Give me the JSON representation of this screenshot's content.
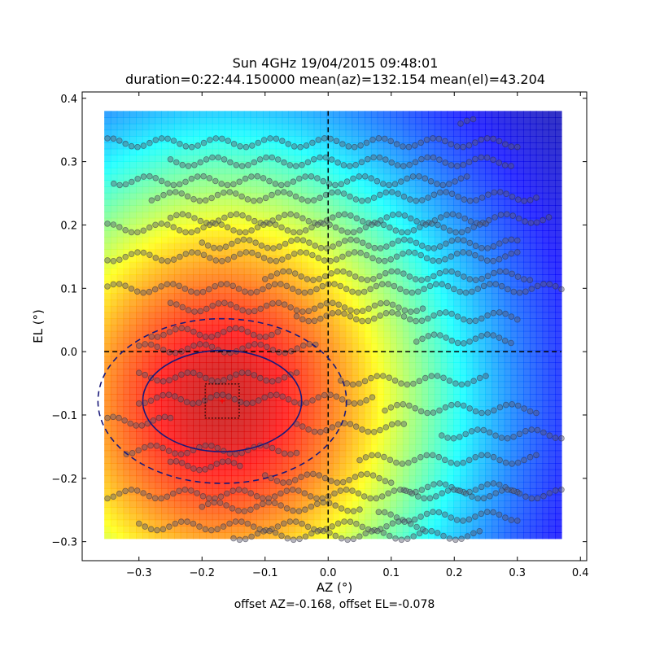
{
  "chart_data": {
    "type": "heatmap",
    "title": "Sun 4GHz 19/04/2015 09:48:01",
    "subtitle": "duration=0:22:44.150000 mean(az)=132.154 mean(el)=43.204",
    "xlabel": "AZ (°)",
    "ylabel": "EL (°)",
    "footer": "offset AZ=-0.168, offset EL=-0.078",
    "xlim": [
      -0.39,
      0.41
    ],
    "ylim": [
      -0.33,
      0.41
    ],
    "xticks": [
      -0.3,
      -0.2,
      -0.1,
      0.0,
      0.1,
      0.2,
      0.3,
      0.4
    ],
    "xtick_labels": [
      "−0.3",
      "−0.2",
      "−0.1",
      "0.0",
      "0.1",
      "0.2",
      "0.3",
      "0.4"
    ],
    "yticks": [
      -0.3,
      -0.2,
      -0.1,
      0.0,
      0.1,
      0.2,
      0.3,
      0.4
    ],
    "ytick_labels": [
      "−0.3",
      "−0.2",
      "−0.1",
      "0.0",
      "0.1",
      "0.2",
      "0.3",
      "0.4"
    ],
    "colormap": "jet",
    "heatmap_extent": {
      "x": [
        -0.355,
        0.37
      ],
      "y": [
        -0.295,
        0.38
      ]
    },
    "peak": {
      "az": -0.168,
      "el": -0.078
    },
    "contour_inner": {
      "center": [
        -0.168,
        -0.078
      ],
      "rx": 0.126,
      "ry": 0.08,
      "color": "#1a1a7a"
    },
    "contour_outer": {
      "center": [
        -0.168,
        -0.078
      ],
      "rx": 0.197,
      "ry": 0.13,
      "color": "#1a1a7a"
    },
    "crosshair_color": "#000000",
    "marker_color": "#ff0000",
    "scan_rows": [
      {
        "el": 0.36,
        "x0": 0.21,
        "x1": 0.23
      },
      {
        "el": 0.33,
        "x0": -0.35,
        "x1": 0.3
      },
      {
        "el": 0.3,
        "x0": -0.25,
        "x1": 0.29
      },
      {
        "el": 0.27,
        "x0": -0.34,
        "x1": 0.22
      },
      {
        "el": 0.245,
        "x0": -0.28,
        "x1": 0.33
      },
      {
        "el": 0.21,
        "x0": -0.25,
        "x1": 0.35
      },
      {
        "el": 0.195,
        "x0": -0.35,
        "x1": 0.25
      },
      {
        "el": 0.17,
        "x0": -0.2,
        "x1": 0.3
      },
      {
        "el": 0.15,
        "x0": -0.35,
        "x1": 0.3
      },
      {
        "el": 0.12,
        "x0": -0.1,
        "x1": 0.32
      },
      {
        "el": 0.1,
        "x0": -0.35,
        "x1": 0.37
      },
      {
        "el": 0.07,
        "x0": -0.25,
        "x1": 0.15
      },
      {
        "el": 0.055,
        "x0": -0.05,
        "x1": 0.3
      },
      {
        "el": 0.03,
        "x0": -0.28,
        "x1": -0.08
      },
      {
        "el": 0.02,
        "x0": 0.14,
        "x1": 0.29
      },
      {
        "el": 0.005,
        "x0": -0.3,
        "x1": -0.02
      },
      {
        "el": -0.04,
        "x0": -0.3,
        "x1": -0.05
      },
      {
        "el": -0.045,
        "x0": 0.02,
        "x1": 0.25
      },
      {
        "el": -0.075,
        "x0": -0.3,
        "x1": 0.07
      },
      {
        "el": -0.09,
        "x0": 0.09,
        "x1": 0.33
      },
      {
        "el": -0.11,
        "x0": -0.35,
        "x1": -0.25
      },
      {
        "el": -0.12,
        "x0": -0.05,
        "x1": 0.12
      },
      {
        "el": -0.13,
        "x0": 0.18,
        "x1": 0.37
      },
      {
        "el": -0.155,
        "x0": -0.32,
        "x1": -0.05
      },
      {
        "el": -0.17,
        "x0": 0.05,
        "x1": 0.33
      },
      {
        "el": -0.18,
        "x0": -0.25,
        "x1": -0.14
      },
      {
        "el": -0.2,
        "x0": -0.1,
        "x1": 0.1
      },
      {
        "el": -0.215,
        "x0": 0.12,
        "x1": 0.3
      },
      {
        "el": -0.225,
        "x0": -0.35,
        "x1": 0.37
      },
      {
        "el": -0.245,
        "x0": -0.2,
        "x1": 0.05
      },
      {
        "el": -0.26,
        "x0": 0.08,
        "x1": 0.3
      },
      {
        "el": -0.275,
        "x0": -0.3,
        "x1": 0.15
      },
      {
        "el": -0.29,
        "x0": -0.15,
        "x1": 0.24
      }
    ]
  }
}
